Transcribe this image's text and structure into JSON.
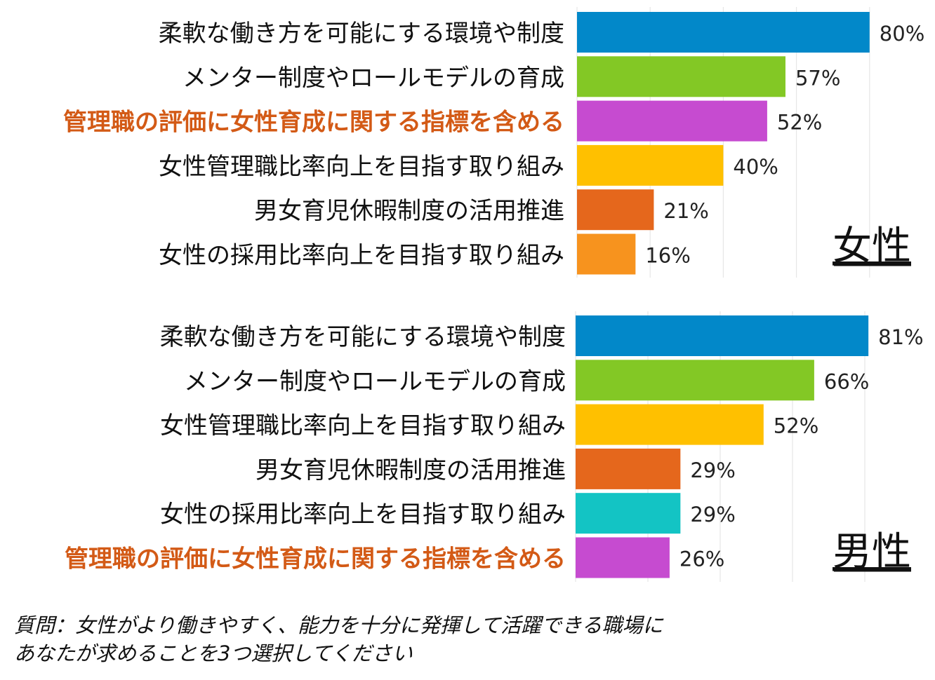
{
  "chart_data": [
    {
      "type": "bar",
      "orientation": "horizontal",
      "panel_label": "女性",
      "xlim": [
        0,
        100
      ],
      "grid": true,
      "categories": [
        "柔軟な働き方を可能にする環境や制度",
        "メンター制度やロールモデルの育成",
        "管理職の評価に女性育成に関する指標を含める",
        "女性管理職比率向上を目指す取り組み",
        "男女育児休暇制度の活用推進",
        "女性の採用比率向上を目指す取り組み"
      ],
      "values": [
        80,
        57,
        52,
        40,
        21,
        16
      ],
      "value_labels": [
        "80%",
        "57%",
        "52%",
        "40%",
        "21%",
        "16%"
      ],
      "bar_colors": [
        "#0288c9",
        "#83c825",
        "#c64bd0",
        "#ffc000",
        "#e5671c",
        "#f7931e"
      ],
      "highlight_category": "管理職の評価に女性育成に関する指標を含める"
    },
    {
      "type": "bar",
      "orientation": "horizontal",
      "panel_label": "男性",
      "xlim": [
        0,
        100
      ],
      "grid": true,
      "categories": [
        "柔軟な働き方を可能にする環境や制度",
        "メンター制度やロールモデルの育成",
        "女性管理職比率向上を目指す取り組み",
        "男女育児休暇制度の活用推進",
        "女性の採用比率向上を目指す取り組み",
        "管理職の評価に女性育成に関する指標を含める"
      ],
      "values": [
        81,
        66,
        52,
        29,
        29,
        26
      ],
      "value_labels": [
        "81%",
        "66%",
        "52%",
        "29%",
        "29%",
        "26%"
      ],
      "bar_colors": [
        "#0288c9",
        "#83c825",
        "#ffc000",
        "#e5671c",
        "#13c4c4",
        "#c64bd0"
      ],
      "highlight_category": "管理職の評価に女性育成に関する指標を含める"
    }
  ],
  "colors": {
    "label_text": "#111111",
    "highlight_text": "#d35a16",
    "grid": "#e6e6e6",
    "value_text": "#222222"
  },
  "footnote": {
    "line1": "質問：女性がより働きやすく、能力を十分に発揮して活躍できる職場に",
    "line2": "あなたが求めることを3つ選択してください"
  }
}
